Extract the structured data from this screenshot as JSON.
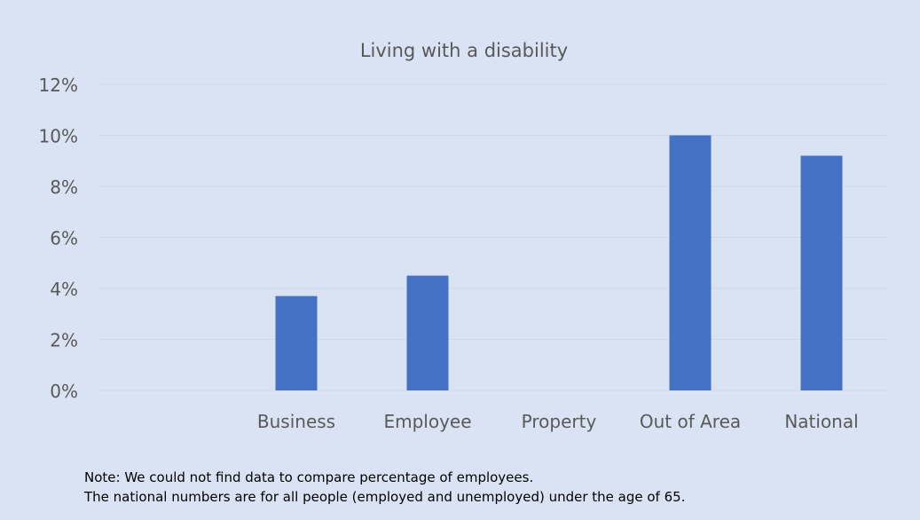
{
  "colors": {
    "background": "#dae3f3",
    "bar": "#4472c4",
    "gridline": "#cfd8e8",
    "text": "#595959"
  },
  "chart_data": {
    "type": "bar",
    "title": "Living with a disability",
    "categories": [
      "",
      "Business",
      "Employee",
      "Property",
      "Out of Area",
      "National"
    ],
    "values": [
      null,
      0.037,
      0.045,
      null,
      0.1,
      0.092
    ],
    "ylim": [
      0,
      0.12
    ],
    "yticks": [
      0,
      0.02,
      0.04,
      0.06,
      0.08,
      0.1,
      0.12
    ],
    "ytick_labels": [
      "0%",
      "2%",
      "4%",
      "6%",
      "8%",
      "10%",
      "12%"
    ],
    "xlabel": "",
    "ylabel": "",
    "grid": true,
    "legend": "none"
  },
  "notes": [
    "Note: We could not find data to compare percentage of employees.",
    "The national numbers are for all people (employed and unemployed) under the age of 65."
  ]
}
